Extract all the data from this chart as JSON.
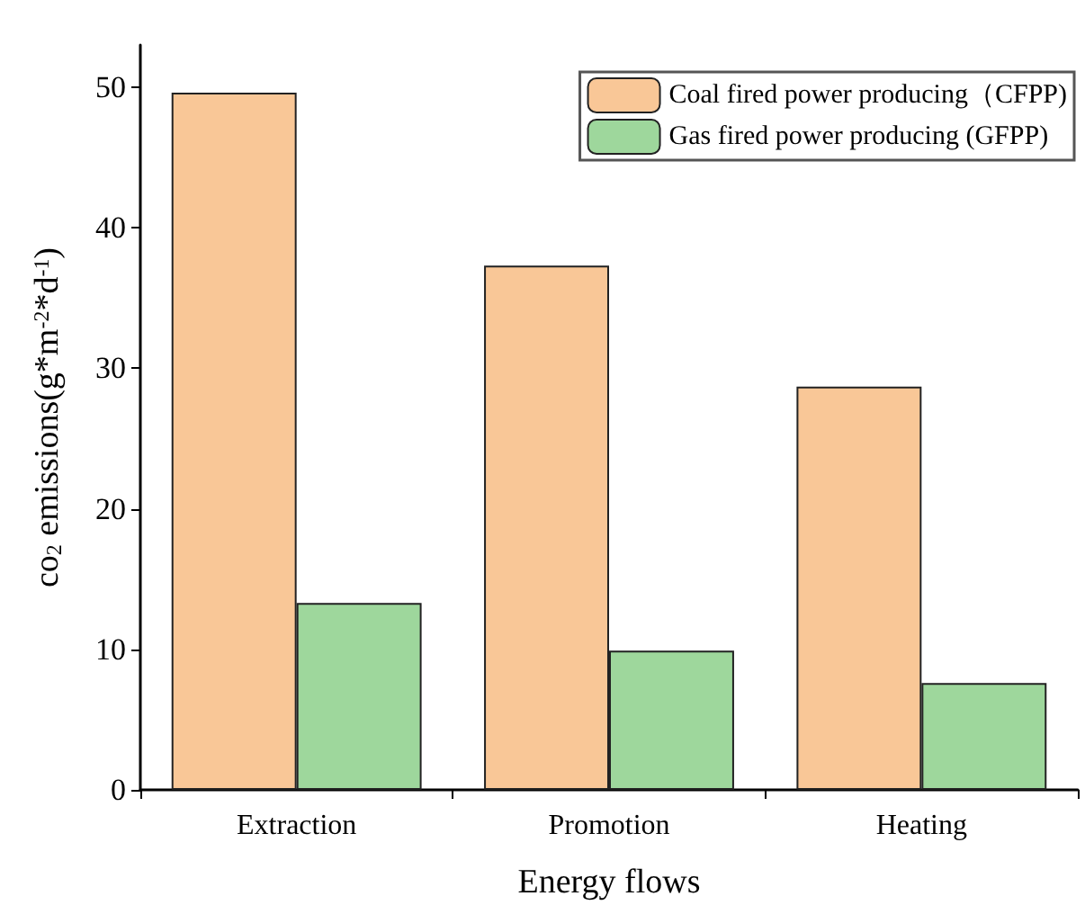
{
  "chart_data": {
    "type": "bar",
    "xlabel": "Energy flows",
    "ylabel": "co$_{2}$ emissions(g*m$^{-2}$*d$^{-1}$)",
    "categories": [
      "Extraction",
      "Promotion",
      "Heating"
    ],
    "series": [
      {
        "name": "Coal fired power producing（CFPP)",
        "color": "#f9c797",
        "values": [
          49.6,
          37.3,
          28.7
        ]
      },
      {
        "name": "Gas fired power producing (GFPP)",
        "color": "#9ed79c",
        "values": [
          13.3,
          9.9,
          7.6
        ]
      }
    ],
    "ylim": [
      0,
      53
    ],
    "yticks": [
      0,
      10,
      20,
      30,
      40,
      50
    ],
    "grid": false,
    "legend": "top right"
  }
}
